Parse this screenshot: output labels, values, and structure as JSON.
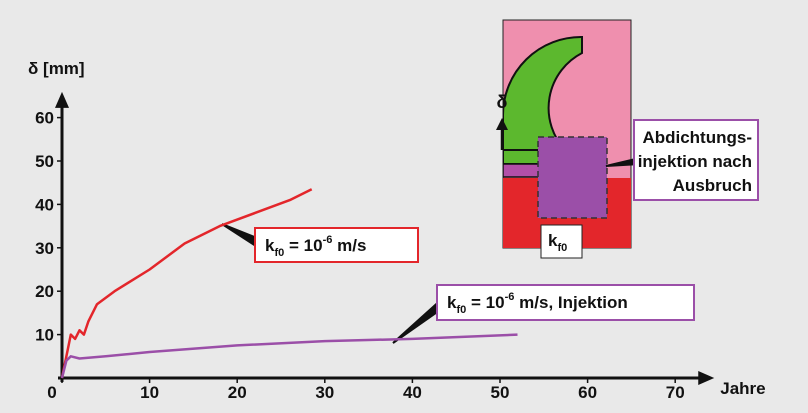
{
  "chart_data": {
    "type": "line",
    "y_label": "δ [mm]",
    "x_label": "Jahre",
    "xlim": [
      0,
      74
    ],
    "ylim": [
      0,
      65
    ],
    "xticks": [
      0,
      10,
      20,
      30,
      40,
      50,
      60,
      70
    ],
    "yticks": [
      10,
      20,
      30,
      40,
      50,
      60
    ],
    "grid": false,
    "series": [
      {
        "color": "#e3262b",
        "x": [
          0,
          0.5,
          1,
          1.5,
          2,
          2.5,
          3,
          4,
          6,
          10,
          14,
          18,
          22,
          26,
          28.5
        ],
        "values": [
          0,
          5,
          10,
          9,
          11,
          10,
          13,
          17,
          20,
          25,
          31,
          35,
          38,
          41,
          43.5
        ]
      },
      {
        "color": "#9b4fa8",
        "x": [
          0,
          0.5,
          1,
          2,
          5,
          10,
          20,
          30,
          40,
          52
        ],
        "values": [
          0,
          4,
          5,
          4.5,
          5,
          6,
          7.5,
          8.5,
          9,
          10
        ]
      }
    ],
    "annotations": [
      {
        "color": "#e3262b",
        "parts": [
          {
            "text": "k"
          },
          {
            "text": "f0",
            "style": "sub"
          },
          {
            "text": " = 10"
          },
          {
            "text": "-6",
            "style": "sup"
          },
          {
            "text": " m/s"
          }
        ]
      },
      {
        "color": "#9b4fa8",
        "parts": [
          {
            "text": "k"
          },
          {
            "text": "f0",
            "style": "sub"
          },
          {
            "text": " = 10"
          },
          {
            "text": "-6",
            "style": "sup"
          },
          {
            "text": " m/s, Injektion"
          }
        ]
      }
    ]
  },
  "inset": {
    "delta": "δ",
    "k_label": [
      {
        "text": "k"
      },
      {
        "text": "f0",
        "style": "sub"
      }
    ],
    "callout": [
      "Abdichtungs-",
      "injektion nach",
      "Ausbruch"
    ]
  }
}
